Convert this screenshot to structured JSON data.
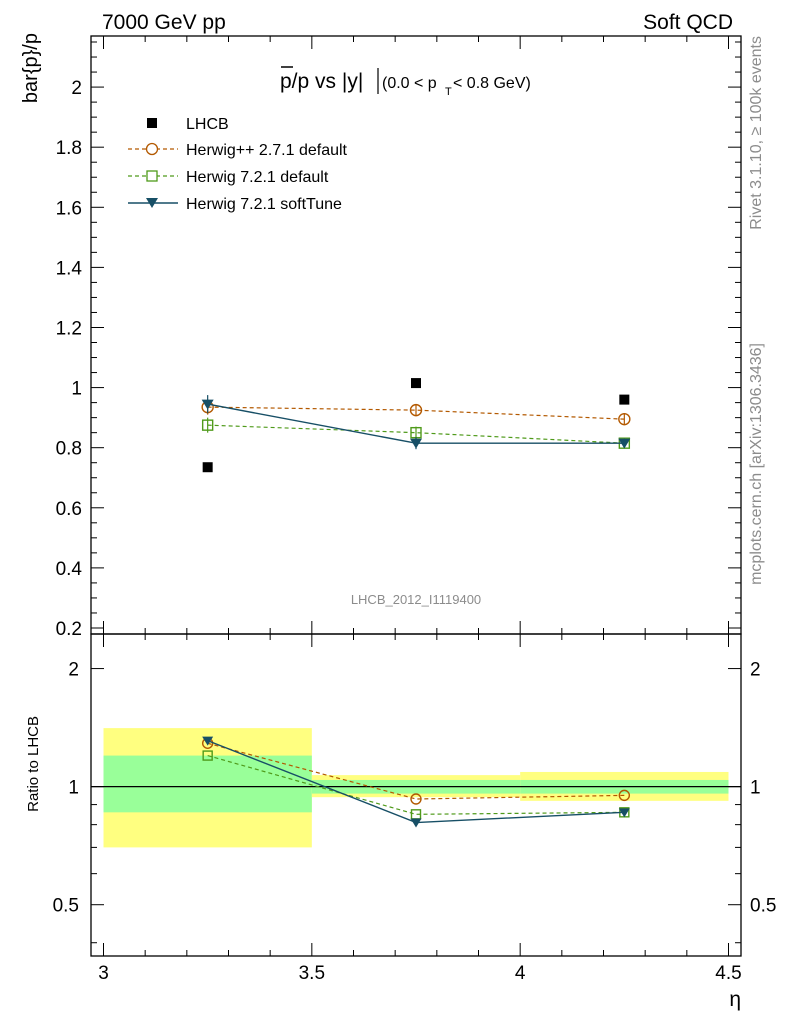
{
  "header": {
    "left": "7000 GeV pp",
    "right": "Soft QCD"
  },
  "side_text": {
    "rivet": "Rivet 3.1.10, ≥ 100k events",
    "mcplots": "mcplots.cern.ch [arXiv:1306.3436]"
  },
  "watermark": "LHCB_2012_I1119400",
  "chart_data": [
    {
      "type": "scatter",
      "title": "p̄/p vs |y|",
      "title_parts": {
        "main": "p/p vs |y|",
        "range_a": "(0.0 < p",
        "sub": "T",
        "range_b": " < 0.8 GeV)"
      },
      "ylabel": "bar{p}/p",
      "ylim": [
        0.18,
        2.17
      ],
      "yticks": [
        "0.2",
        "0.4",
        "0.6",
        "0.8",
        "1",
        "1.2",
        "1.4",
        "1.6",
        "1.8",
        "2"
      ],
      "xlim": [
        2.97,
        4.53
      ],
      "legend_placement": "top-left",
      "series": [
        {
          "name": "LHCB",
          "marker": "square-filled",
          "color": "#000000",
          "x": [
            3.25,
            3.75,
            4.25
          ],
          "y": [
            0.735,
            1.015,
            0.96
          ]
        },
        {
          "name": "Herwig++ 2.7.1 default",
          "marker": "circle-open",
          "color": "#b35900",
          "dash": true,
          "x": [
            3.25,
            3.75,
            4.25
          ],
          "y": [
            0.935,
            0.925,
            0.895
          ],
          "err": [
            0.025,
            0.02,
            0.02
          ]
        },
        {
          "name": "Herwig 7.2.1 default",
          "marker": "square-open",
          "color": "#4f9a1a",
          "dash": true,
          "x": [
            3.25,
            3.75,
            4.25
          ],
          "y": [
            0.875,
            0.85,
            0.815
          ],
          "err": [
            0.025,
            0.02,
            0.015
          ]
        },
        {
          "name": "Herwig 7.2.1 softTune",
          "marker": "triangle-down-filled",
          "color": "#174f66",
          "dash": false,
          "x": [
            3.25,
            3.75,
            4.25
          ],
          "y": [
            0.945,
            0.815,
            0.815
          ],
          "err": [
            0.03,
            0.02,
            0.015
          ]
        }
      ]
    },
    {
      "type": "scatter",
      "ylabel": "Ratio to LHCB",
      "xlabel": "η",
      "ylim": [
        0.37,
        2.45
      ],
      "yscale": "log",
      "yticks": [
        "0.5",
        "1",
        "2"
      ],
      "xlim": [
        2.97,
        4.53
      ],
      "xticks": [
        "3",
        "3.5",
        "4",
        "4.5"
      ],
      "bands": [
        {
          "x0": 3.0,
          "x1": 3.5,
          "yellow": [
            0.7,
            1.41
          ],
          "green": [
            0.86,
            1.2
          ]
        },
        {
          "x0": 3.5,
          "x1": 4.0,
          "yellow": [
            0.94,
            1.07
          ],
          "green": [
            0.96,
            1.04
          ]
        },
        {
          "x0": 4.0,
          "x1": 4.5,
          "yellow": [
            0.92,
            1.09
          ],
          "green": [
            0.96,
            1.04
          ]
        }
      ],
      "series": [
        {
          "name": "Herwig++ 2.7.1 default",
          "x": [
            3.25,
            3.75,
            4.25
          ],
          "y": [
            1.29,
            0.93,
            0.95
          ]
        },
        {
          "name": "Herwig 7.2.1 default",
          "x": [
            3.25,
            3.75,
            4.25
          ],
          "y": [
            1.2,
            0.85,
            0.86
          ]
        },
        {
          "name": "Herwig 7.2.1 softTune",
          "x": [
            3.25,
            3.75,
            4.25
          ],
          "y": [
            1.31,
            0.81,
            0.86
          ]
        }
      ]
    }
  ]
}
